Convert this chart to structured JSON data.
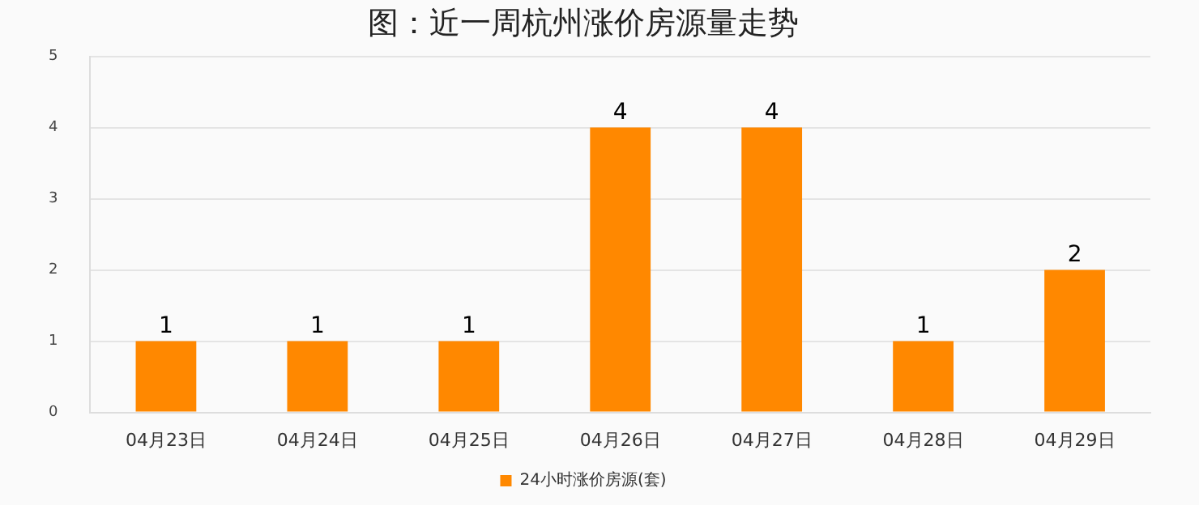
{
  "chart_data": {
    "type": "bar",
    "title": "图：近一周杭州涨价房源量走势",
    "categories": [
      "04月23日",
      "04月24日",
      "04月25日",
      "04月26日",
      "04月27日",
      "04月28日",
      "04月29日"
    ],
    "series": [
      {
        "name": "24小时涨价房源(套)",
        "color": "#ff8800",
        "values": [
          1,
          1,
          1,
          4,
          4,
          1,
          2
        ]
      }
    ],
    "ylim": [
      0,
      5
    ],
    "yticks": [
      0,
      1,
      2,
      3,
      4,
      5
    ],
    "grid": "y",
    "legend": "bottom",
    "data_labels": true
  }
}
